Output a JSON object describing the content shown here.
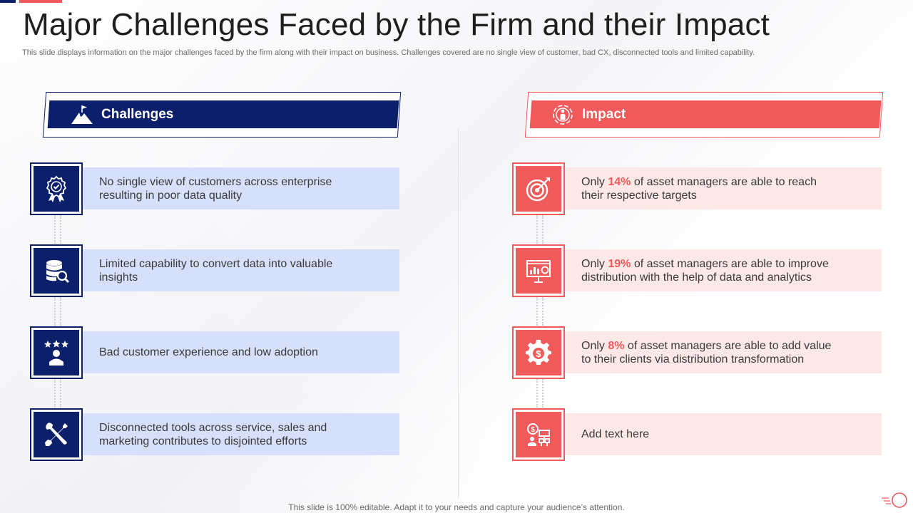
{
  "title": "Major Challenges Faced by the Firm and their Impact",
  "subtitle": "This slide displays information on the major challenges faced by the firm along with their impact on business. Challenges covered are no single view of customer, bad CX,  disconnected tools and limited capability.",
  "challenges": {
    "heading": "Challenges",
    "heading_icon": "mountain-flag-icon",
    "items": [
      {
        "icon": "award-badge-icon",
        "text": "No single view of customers across enterprise resulting in poor data quality"
      },
      {
        "icon": "database-search-icon",
        "text": "Limited capability to convert data into valuable insights"
      },
      {
        "icon": "customer-rating-icon",
        "text": "Bad customer experience and low adoption"
      },
      {
        "icon": "tools-icon",
        "text": "Disconnected tools across service, sales and marketing contributes to disjointed efforts"
      }
    ]
  },
  "impact": {
    "heading": "Impact",
    "heading_icon": "person-target-icon",
    "items": [
      {
        "icon": "target-icon",
        "pre": "Only ",
        "highlight": "14%",
        "post": " of asset managers are able to reach their respective targets"
      },
      {
        "icon": "analytics-board-icon",
        "pre": "Only ",
        "highlight": "19%",
        "post": " of asset managers are able to improve distribution with the help of data and analytics"
      },
      {
        "icon": "gear-dollar-icon",
        "pre": "Only ",
        "highlight": "8%",
        "post": " of asset managers are able to add value to their clients via distribution transformation"
      },
      {
        "icon": "finance-network-icon",
        "pre": "",
        "highlight": "",
        "post": "Add text here"
      }
    ]
  },
  "footer": "This slide is 100% editable. Adapt it to your needs and capture your audience’s attention.",
  "colors": {
    "navy": "#0b1f6b",
    "coral": "#f15a5a",
    "light_blue": "#d6e0fb",
    "light_pink": "#fde8e8"
  }
}
